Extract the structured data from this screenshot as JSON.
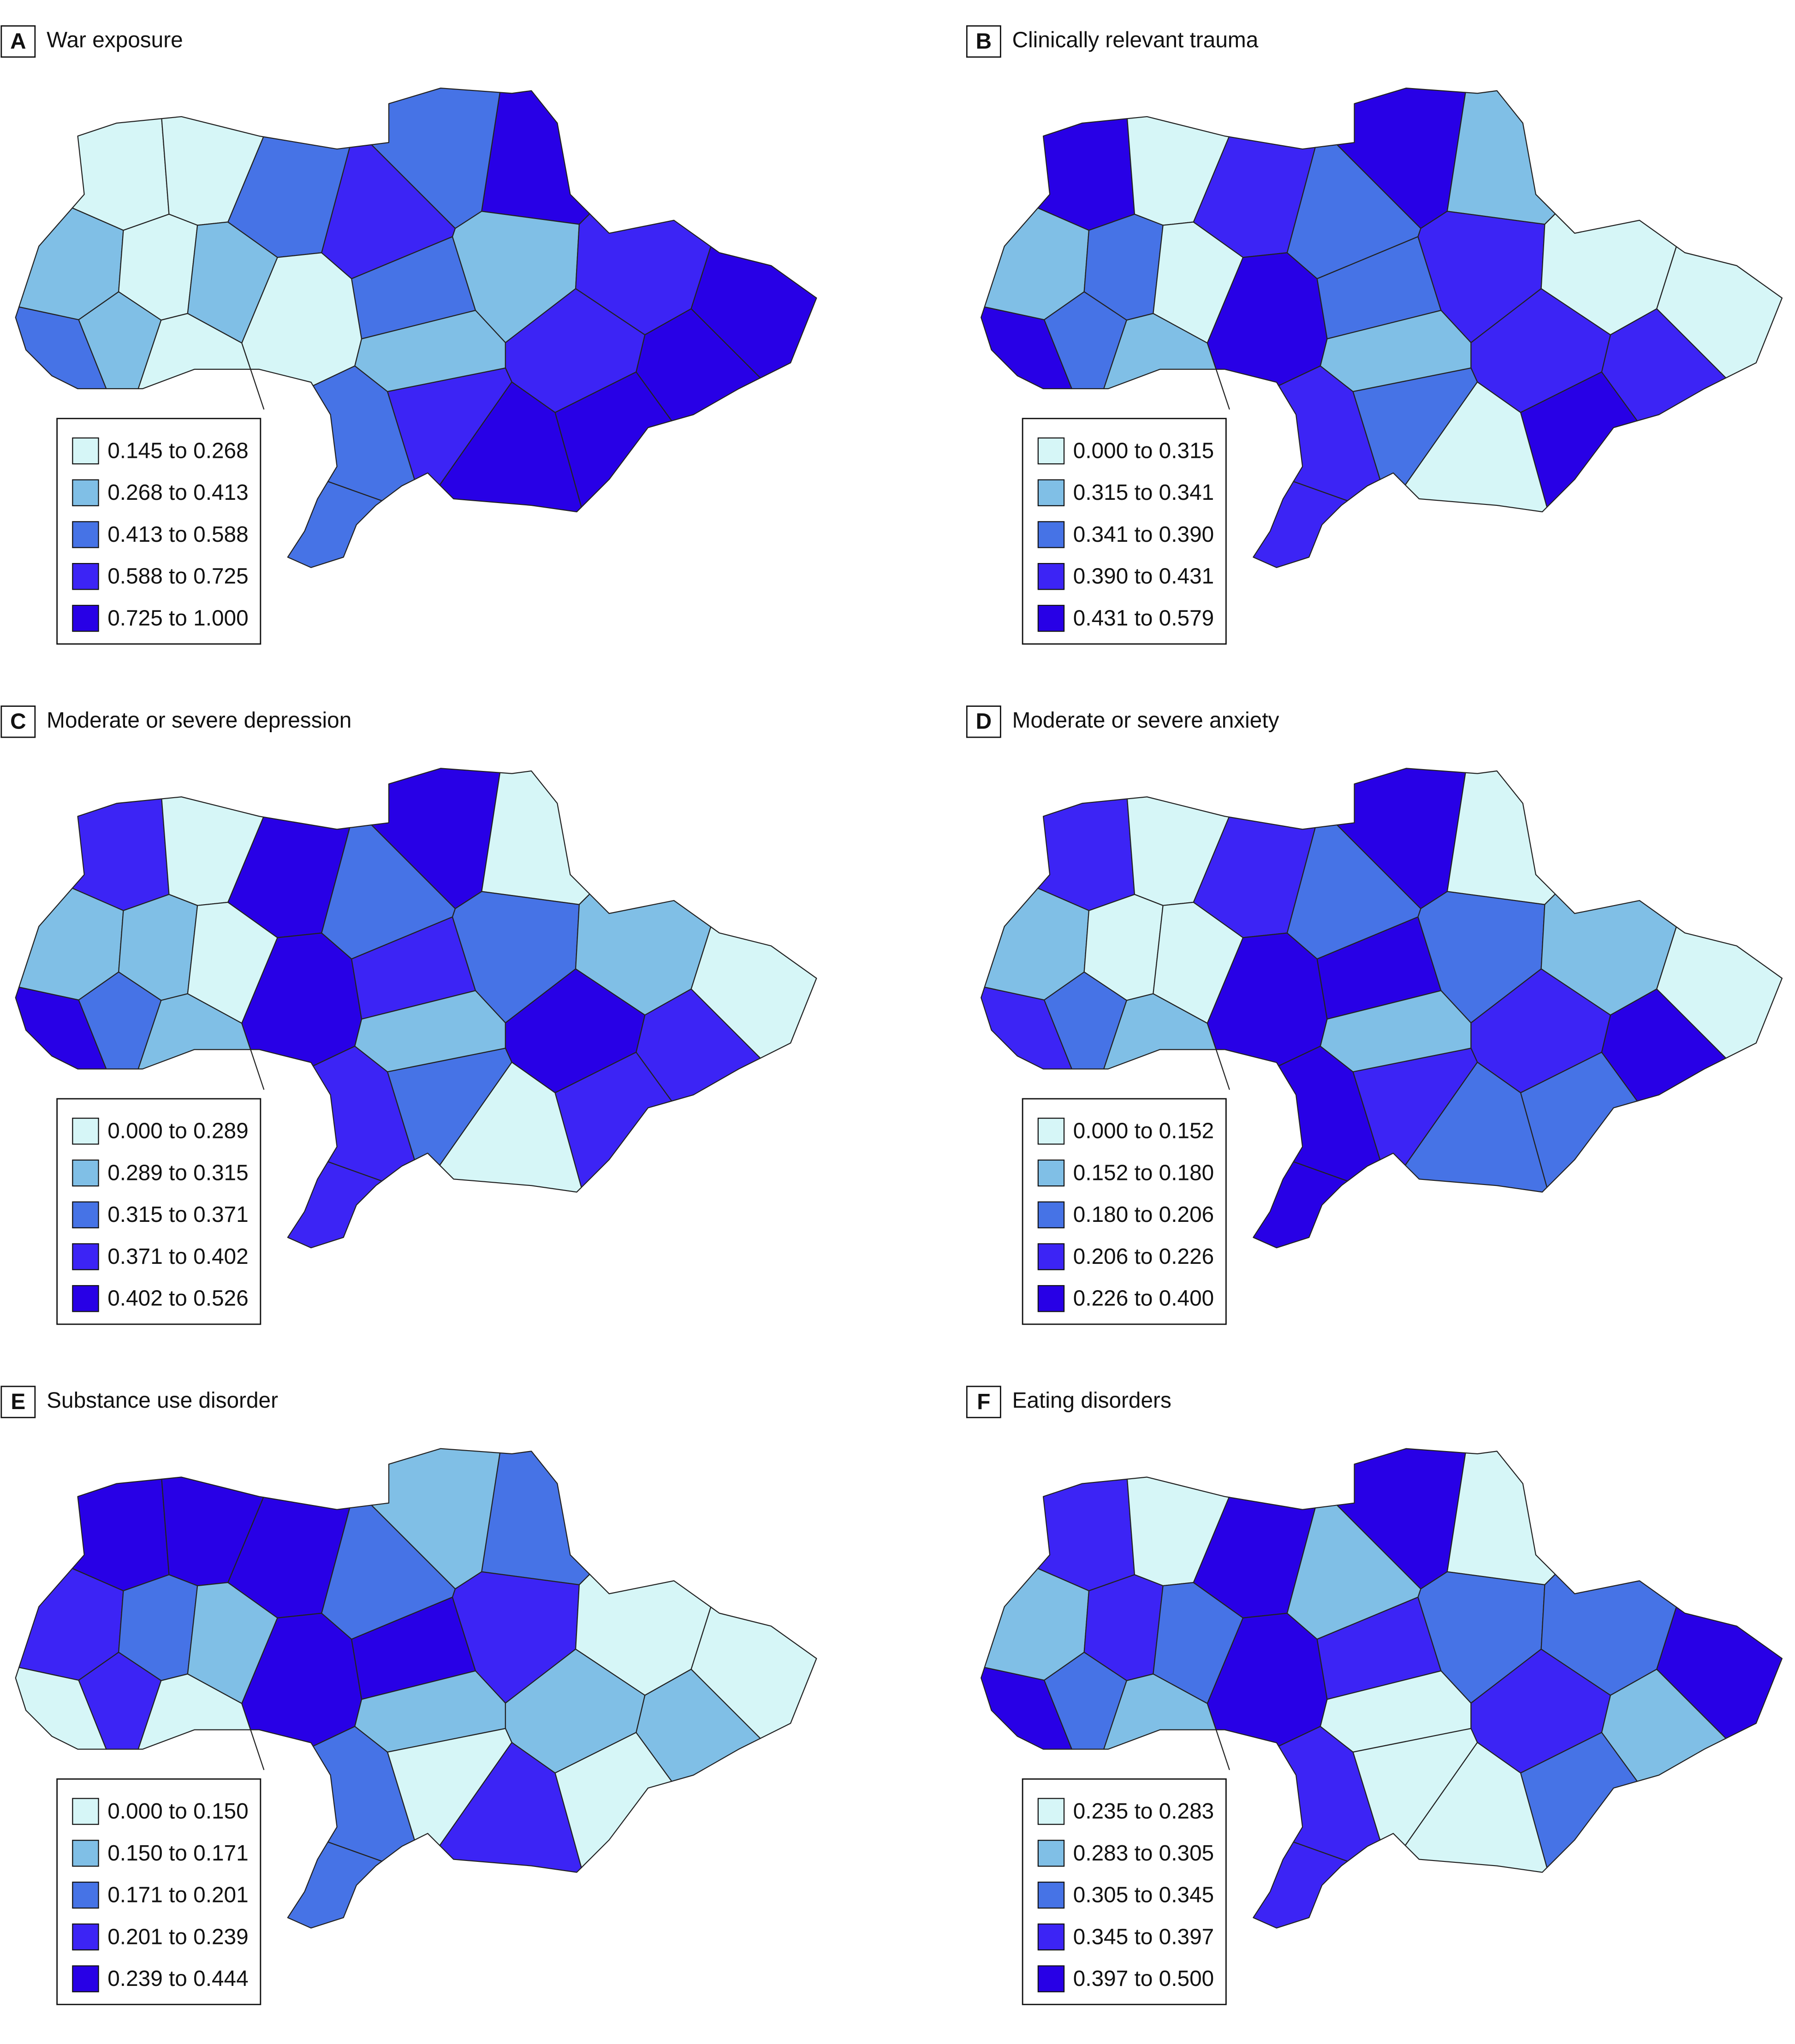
{
  "panels": [
    {
      "letter": "A",
      "title": "War exposure",
      "legend": [
        {
          "label": "0.145 to 0.268",
          "color": "#d6f6f7"
        },
        {
          "label": "0.268 to 0.413",
          "color": "#80bfe6"
        },
        {
          "label": "0.413 to 0.588",
          "color": "#4673e6"
        },
        {
          "label": "0.588 to 0.725",
          "color": "#3c24f5"
        },
        {
          "label": "0.725 to 1.000",
          "color": "#2800e6"
        }
      ]
    },
    {
      "letter": "B",
      "title": "Clinically relevant trauma",
      "legend": [
        {
          "label": "0.000 to 0.315",
          "color": "#d6f6f7"
        },
        {
          "label": "0.315 to 0.341",
          "color": "#80bfe6"
        },
        {
          "label": "0.341 to 0.390",
          "color": "#4673e6"
        },
        {
          "label": "0.390 to 0.431",
          "color": "#3c24f5"
        },
        {
          "label": "0.431 to 0.579",
          "color": "#2800e6"
        }
      ]
    },
    {
      "letter": "C",
      "title": "Moderate or severe depression",
      "legend": [
        {
          "label": "0.000 to 0.289",
          "color": "#d6f6f7"
        },
        {
          "label": "0.289 to 0.315",
          "color": "#80bfe6"
        },
        {
          "label": "0.315 to 0.371",
          "color": "#4673e6"
        },
        {
          "label": "0.371 to 0.402",
          "color": "#3c24f5"
        },
        {
          "label": "0.402 to 0.526",
          "color": "#2800e6"
        }
      ]
    },
    {
      "letter": "D",
      "title": "Moderate or severe anxiety",
      "legend": [
        {
          "label": "0.000 to 0.152",
          "color": "#d6f6f7"
        },
        {
          "label": "0.152 to 0.180",
          "color": "#80bfe6"
        },
        {
          "label": "0.180 to 0.206",
          "color": "#4673e6"
        },
        {
          "label": "0.206 to 0.226",
          "color": "#3c24f5"
        },
        {
          "label": "0.226 to 0.400",
          "color": "#2800e6"
        }
      ]
    },
    {
      "letter": "E",
      "title": "Substance use disorder",
      "legend": [
        {
          "label": "0.000 to 0.150",
          "color": "#d6f6f7"
        },
        {
          "label": "0.150 to 0.171",
          "color": "#80bfe6"
        },
        {
          "label": "0.171 to 0.201",
          "color": "#4673e6"
        },
        {
          "label": "0.201 to 0.239",
          "color": "#3c24f5"
        },
        {
          "label": "0.239 to 0.444",
          "color": "#2800e6"
        }
      ]
    },
    {
      "letter": "F",
      "title": "Eating disorders",
      "legend": [
        {
          "label": "0.235 to 0.283",
          "color": "#d6f6f7"
        },
        {
          "label": "0.283 to 0.305",
          "color": "#80bfe6"
        },
        {
          "label": "0.305 to 0.345",
          "color": "#4673e6"
        },
        {
          "label": "0.345 to 0.397",
          "color": "#3c24f5"
        },
        {
          "label": "0.397 to 0.500",
          "color": "#2800e6"
        }
      ]
    }
  ]
}
